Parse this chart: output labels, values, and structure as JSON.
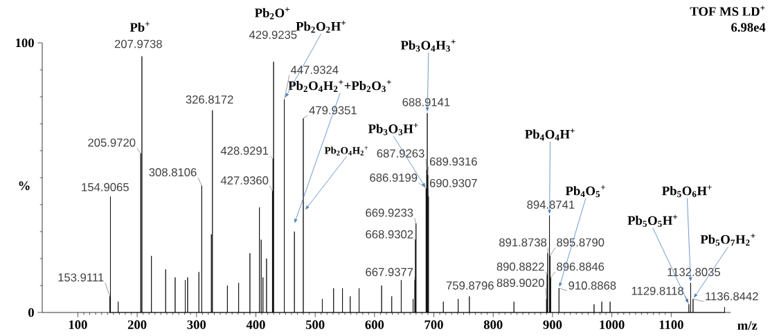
{
  "chart_data": {
    "type": "line",
    "xlabel": "m/z",
    "ylabel": "%",
    "xlim": [
      40,
      1200
    ],
    "ylim": [
      0,
      100
    ],
    "xticks": [
      100,
      200,
      300,
      400,
      500,
      600,
      700,
      800,
      900,
      1000,
      1100
    ],
    "yticks": [
      0,
      100
    ],
    "marker": "none",
    "line_style": "solid",
    "series": [
      {
        "color": "#000000",
        "x": [
          153.9111,
          153.9111,
          153.9111,
          154.9065,
          154.9065,
          154.9065,
          168,
          168,
          168,
          205.972,
          205.972,
          205.972,
          207.9738,
          207.9738,
          207.9738,
          224,
          224,
          224,
          248,
          248,
          248,
          264,
          264,
          264,
          281,
          281,
          281,
          285,
          285,
          285,
          304,
          304,
          304,
          308.8106,
          308.8106,
          308.8106,
          325,
          325,
          325,
          326.8172,
          326.8172,
          326.8172,
          352,
          352,
          352,
          371,
          371,
          371,
          390,
          390,
          390,
          406,
          406,
          406,
          409,
          409,
          409,
          412,
          412,
          412,
          418,
          418,
          418,
          427.936,
          427.936,
          427.936,
          428.9291,
          428.9291,
          428.9291,
          429.9235,
          429.9235,
          429.9235,
          447.9324,
          447.9324,
          447.9324,
          465,
          465,
          465,
          479.9351,
          479.9351,
          479.9351,
          512,
          512,
          512,
          531,
          531,
          531,
          546,
          546,
          546,
          559,
          559,
          559,
          574,
          574,
          574,
          612,
          612,
          612,
          629,
          629,
          629,
          645,
          645,
          645,
          665,
          665,
          665,
          667.9377,
          667.9377,
          667.9377,
          668.9302,
          668.9302,
          668.9302,
          669.9233,
          669.9233,
          669.9233,
          686.9199,
          686.9199,
          686.9199,
          687.9263,
          687.9263,
          687.9263,
          688.9141,
          688.9141,
          688.9141,
          689.9316,
          689.9316,
          689.9316,
          690.9307,
          690.9307,
          690.9307,
          716,
          716,
          716,
          741,
          741,
          741,
          759.8796,
          759.8796,
          759.8796,
          835,
          835,
          835,
          889.902,
          889.902,
          889.902,
          890.8822,
          890.8822,
          890.8822,
          891.8738,
          891.8738,
          891.8738,
          894.8741,
          894.8741,
          894.8741,
          895.879,
          895.879,
          895.879,
          896.8846,
          896.8846,
          896.8846,
          910.8868,
          910.8868,
          910.8868,
          970,
          970,
          970,
          983,
          983,
          983,
          997,
          997,
          997,
          1129.8118,
          1129.8118,
          1129.8118,
          1132.8035,
          1132.8035,
          1132.8035,
          1136.8442,
          1136.8442,
          1136.8442,
          1190,
          1190,
          1190
        ],
        "values": [
          0,
          6,
          0,
          0,
          43,
          0,
          0,
          4,
          0,
          0,
          59,
          0,
          0,
          95,
          0,
          0,
          21,
          0,
          0,
          16,
          0,
          0,
          13,
          0,
          0,
          12,
          0,
          0,
          13,
          0,
          0,
          15,
          0,
          0,
          47,
          0,
          0,
          29,
          0,
          0,
          75,
          0,
          0,
          10,
          0,
          0,
          11,
          0,
          0,
          22,
          0,
          0,
          39,
          0,
          0,
          27,
          0,
          0,
          13,
          0,
          0,
          20,
          0,
          0,
          45,
          0,
          0,
          57,
          0,
          0,
          93,
          0,
          0,
          79,
          0,
          0,
          30,
          0,
          0,
          72,
          0,
          0,
          5,
          0,
          0,
          9,
          0,
          0,
          9,
          0,
          0,
          6,
          0,
          0,
          9,
          0,
          0,
          10,
          0,
          0,
          6,
          0,
          0,
          12,
          0,
          0,
          5,
          0,
          0,
          12,
          0,
          0,
          27,
          0,
          0,
          33,
          0,
          0,
          46,
          0,
          0,
          53,
          0,
          0,
          74,
          0,
          0,
          51,
          0,
          0,
          43,
          0,
          0,
          4,
          0,
          0,
          5,
          0,
          0,
          6,
          0,
          0,
          4,
          0,
          0,
          5,
          0,
          0,
          14,
          0,
          0,
          22,
          0,
          0,
          36,
          0,
          0,
          21,
          0,
          0,
          13,
          0,
          0,
          9,
          0,
          0,
          3,
          0,
          0,
          4,
          0,
          0,
          4,
          0,
          0,
          3,
          0,
          0,
          11,
          0,
          0,
          5,
          0,
          0,
          2,
          0
        ]
      }
    ],
    "annotations": [
      {
        "text": "Pb$^{+}$",
        "x": 207.9738,
        "y": 95
      },
      "Pb$_{2}$O$^{+}$",
      {
        "text": "Pb$_{2}$O$_{2}$H$^{+}$",
        "x": 447.9324,
        "y": 79
      },
      {
        "text": "Pb$_{3}$O$_{4}$H$_{3}$$^{+}$",
        "x": 688.9141,
        "y": 74
      },
      "Pb$_{2}$O$_{4}$H$_{2}$$^{+}$+Pb$_{2}$O$_{3}$$^{+}$",
      "Pb$_{2}$O$_{4}$H$_{2}$$^{+}$",
      {
        "text": "Pb$_{3}$O$_{3}$H$^{+}$",
        "x": 686.9199,
        "y": 46
      },
      {
        "text": "Pb$_{4}$O$_{4}$H$^{+}$",
        "x": 894.8741,
        "y": 36
      },
      {
        "text": "Pb$_{4}$O$_{5}$$^{+}$",
        "x": 910.8868,
        "y": 9
      },
      {
        "text": "Pb$_{5}$O$_{6}$H$^{+}$",
        "x": 1132.8035,
        "y": 11
      },
      {
        "text": "Pb$_{5}$O$_{5}$H$^{+}$",
        "x": 1129.8118,
        "y": 3
      },
      {
        "text": "Pb$_{5}$O$_{7}$H$_{2}$$^{+}$",
        "x": 1136.8442,
        "y": 5
      },
      {
        "text": "207.9738",
        "x": 207.9738,
        "y": 95
      },
      {
        "text": "205.9720",
        "x": 205.972,
        "y": 59
      },
      {
        "text": "154.9065",
        "x": 154.9065,
        "y": 43
      },
      {
        "text": "153.9111",
        "x": 153.9111,
        "y": 6
      },
      {
        "text": "308.8106",
        "x": 308.8106,
        "y": 47
      },
      {
        "text": "326.8172",
        "x": 326.8172,
        "y": 75
      },
      {
        "text": "428.9291",
        "x": 428.9291,
        "y": 57
      },
      {
        "text": "427.9360",
        "x": 427.936,
        "y": 45
      },
      {
        "text": "429.9235",
        "x": 429.9235,
        "y": 93
      },
      {
        "text": "447.9324",
        "x": 447.9324,
        "y": 79
      },
      {
        "text": "479.9351",
        "x": 479.9351,
        "y": 72
      },
      {
        "text": "688.9141",
        "x": 688.9141,
        "y": 74
      },
      {
        "text": "687.9263",
        "x": 687.9263,
        "y": 53
      },
      {
        "text": "689.9316",
        "x": 689.9316,
        "y": 51
      },
      {
        "text": "686.9199",
        "x": 686.9199,
        "y": 46
      },
      {
        "text": "690.9307",
        "x": 690.9307,
        "y": 43
      },
      {
        "text": "669.9233",
        "x": 669.9233,
        "y": 33
      },
      {
        "text": "668.9302",
        "x": 668.9302,
        "y": 27
      },
      {
        "text": "667.9377",
        "x": 667.9377,
        "y": 12
      },
      {
        "text": "759.8796",
        "x": 759.8796,
        "y": 6
      },
      {
        "text": "891.8738",
        "x": 891.8738,
        "y": 22
      },
      {
        "text": "890.8822",
        "x": 890.8822,
        "y": 14
      },
      {
        "text": "889.9020",
        "x": 889.902,
        "y": 5
      },
      {
        "text": "895.8790",
        "x": 895.879,
        "y": 21
      },
      {
        "text": "896.8846",
        "x": 896.8846,
        "y": 13
      },
      {
        "text": "894.8741",
        "x": 894.8741,
        "y": 36
      },
      {
        "text": "910.8868",
        "x": 910.8868,
        "y": 9
      },
      {
        "text": "1132.8035",
        "x": 1132.8035,
        "y": 11
      },
      {
        "text": "1129.8118",
        "x": 1129.8118,
        "y": 3
      },
      {
        "text": "1136.8442",
        "x": 1136.8442,
        "y": 5
      },
      "TOF MS LD$^{+}$",
      "6.98e4"
    ]
  }
}
